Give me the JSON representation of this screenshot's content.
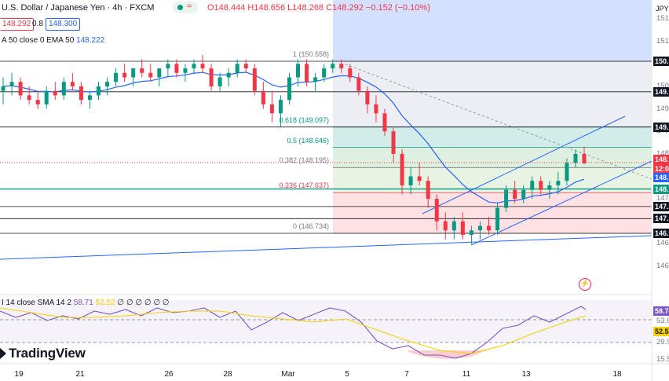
{
  "header": {
    "symbol_title": "U.S. Dollar / Japanese Yen · 4h · FXCM",
    "open": "O148.444",
    "high": "H148.656",
    "low": "L148.268",
    "close": "C148.292",
    "change": "−0.152 (−0.10%)",
    "sell_price": "148.292",
    "spread": "0.8",
    "buy_price": "148.300",
    "ma_label": "A 50 close 0 EMA 50",
    "ma_value": "148.222",
    "currency": "JPY"
  },
  "fib_levels": [
    {
      "label": "1 (150.558)",
      "value": 150.558,
      "color": "#787b86"
    },
    {
      "label": "0.618 (149.097)",
      "value": 149.097,
      "color": "#089981"
    },
    {
      "label": "0.5 (148.646)",
      "value": 148.646,
      "color": "#089981"
    },
    {
      "label": "0.382 (148.195)",
      "value": 148.195,
      "color": "#787b86"
    },
    {
      "label": "0.236 (147.637)",
      "value": 147.637,
      "color": "#f23645"
    },
    {
      "label": "0 (146.734)",
      "value": 146.734,
      "color": "#787b86"
    }
  ],
  "price_axis": {
    "ticks": [
      "151.",
      "151.",
      "150.",
      "150.",
      "149.",
      "149.",
      "148.",
      "148.",
      "147.",
      "147.",
      "146.",
      "146.",
      "145."
    ],
    "tick_values": [
      151.5,
      151.0,
      150.5,
      150.0,
      149.5,
      149.0,
      148.5,
      148.0,
      147.5,
      147.0,
      146.5,
      146.0,
      145.5
    ],
    "tags": [
      {
        "label": "150.",
        "value": 150.558,
        "color": "#131722"
      },
      {
        "label": "149.",
        "value": 149.88,
        "color": "#131722"
      },
      {
        "label": "149.",
        "value": 149.097,
        "color": "#131722"
      },
      {
        "label": "148.",
        "value": 148.38,
        "color": "#f23645"
      },
      {
        "label": "12:0",
        "value": 148.17,
        "color": "#f23645"
      },
      {
        "label": "148.",
        "value": 147.97,
        "color": "#2962ff"
      },
      {
        "label": "148.",
        "value": 147.72,
        "color": "#089981"
      },
      {
        "label": "147.",
        "value": 147.33,
        "color": "#131722"
      },
      {
        "label": "147.",
        "value": 147.06,
        "color": "#131722"
      },
      {
        "label": "146.",
        "value": 146.734,
        "color": "#131722"
      }
    ]
  },
  "rsi": {
    "label": "I 14 close SMA 14 2",
    "value": "58.71",
    "sma_value": "52.52",
    "nulls": "∅ ∅ ∅ ∅ ∅ ∅",
    "axis_ticks": [
      "53.6",
      "29.9",
      "15.5"
    ],
    "tags": [
      {
        "label": "58.7",
        "color": "#7e57c2"
      },
      {
        "label": "52.5",
        "color": "#f7d100"
      }
    ]
  },
  "time_axis": {
    "labels": [
      "19",
      "21",
      "26",
      "28",
      "Mar",
      "5",
      "7",
      "11",
      "13",
      "18"
    ]
  },
  "branding": {
    "name": "TradingView"
  },
  "chart_data": {
    "type": "candlestick",
    "interval": "4h",
    "ylim": [
      145.3,
      151.8
    ],
    "candles": [
      [
        149.9,
        150.2,
        149.6,
        150.0
      ],
      [
        150.0,
        150.3,
        149.8,
        150.1
      ],
      [
        150.1,
        150.2,
        149.7,
        149.8
      ],
      [
        149.8,
        150.0,
        149.6,
        149.7
      ],
      [
        149.7,
        149.9,
        149.5,
        149.6
      ],
      [
        149.6,
        150.0,
        149.5,
        149.9
      ],
      [
        149.9,
        150.1,
        149.7,
        149.8
      ],
      [
        149.8,
        150.2,
        149.7,
        150.1
      ],
      [
        150.1,
        150.3,
        149.9,
        150.0
      ],
      [
        150.0,
        150.1,
        149.6,
        149.7
      ],
      [
        149.7,
        149.9,
        149.5,
        149.8
      ],
      [
        149.8,
        150.1,
        149.7,
        150.0
      ],
      [
        150.0,
        150.2,
        149.8,
        150.1
      ],
      [
        150.1,
        150.4,
        150.0,
        150.3
      ],
      [
        150.3,
        150.5,
        150.1,
        150.2
      ],
      [
        150.2,
        150.4,
        150.0,
        150.4
      ],
      [
        150.4,
        150.6,
        150.2,
        150.3
      ],
      [
        150.3,
        150.5,
        150.1,
        150.2
      ],
      [
        150.2,
        150.4,
        150.0,
        150.4
      ],
      [
        150.4,
        150.6,
        150.2,
        150.5
      ],
      [
        150.5,
        150.6,
        150.2,
        150.3
      ],
      [
        150.3,
        150.5,
        150.1,
        150.4
      ],
      [
        150.4,
        150.6,
        150.3,
        150.5
      ],
      [
        150.5,
        150.7,
        150.3,
        150.4
      ],
      [
        150.4,
        150.5,
        149.9,
        150.0
      ],
      [
        150.0,
        150.3,
        149.9,
        150.2
      ],
      [
        150.2,
        150.4,
        150.0,
        150.3
      ],
      [
        150.3,
        150.6,
        150.2,
        150.5
      ],
      [
        150.5,
        150.6,
        150.3,
        150.4
      ],
      [
        150.4,
        150.5,
        149.8,
        149.9
      ],
      [
        149.9,
        150.1,
        149.5,
        149.6
      ],
      [
        149.6,
        149.9,
        149.2,
        149.4
      ],
      [
        149.4,
        149.8,
        149.1,
        149.7
      ],
      [
        149.7,
        150.3,
        149.6,
        150.2
      ],
      [
        150.2,
        150.6,
        150.0,
        150.5
      ],
      [
        150.5,
        150.6,
        150.0,
        150.1
      ],
      [
        150.1,
        150.3,
        149.9,
        150.2
      ],
      [
        150.2,
        150.5,
        150.1,
        150.4
      ],
      [
        150.4,
        150.6,
        150.3,
        150.5
      ],
      [
        150.5,
        150.6,
        150.3,
        150.4
      ],
      [
        150.4,
        150.5,
        150.1,
        150.2
      ],
      [
        150.2,
        150.3,
        149.8,
        149.9
      ],
      [
        149.9,
        150.0,
        149.4,
        149.6
      ],
      [
        149.6,
        149.8,
        149.2,
        149.4
      ],
      [
        149.4,
        149.5,
        148.9,
        149.0
      ],
      [
        149.0,
        149.1,
        148.3,
        148.5
      ],
      [
        148.5,
        148.6,
        147.6,
        147.8
      ],
      [
        147.8,
        148.2,
        147.6,
        148.0
      ],
      [
        148.0,
        148.3,
        147.8,
        147.9
      ],
      [
        147.9,
        148.0,
        147.3,
        147.5
      ],
      [
        147.5,
        147.6,
        146.8,
        147.0
      ],
      [
        147.0,
        147.2,
        146.6,
        146.8
      ],
      [
        146.8,
        147.1,
        146.6,
        147.0
      ],
      [
        147.0,
        147.2,
        146.6,
        146.7
      ],
      [
        146.7,
        146.9,
        146.5,
        146.8
      ],
      [
        146.8,
        147.0,
        146.6,
        146.9
      ],
      [
        146.9,
        147.1,
        146.7,
        146.8
      ],
      [
        146.8,
        147.4,
        146.7,
        147.3
      ],
      [
        147.3,
        147.8,
        147.2,
        147.7
      ],
      [
        147.7,
        147.9,
        147.4,
        147.5
      ],
      [
        147.5,
        147.8,
        147.4,
        147.7
      ],
      [
        147.7,
        148.0,
        147.5,
        147.9
      ],
      [
        147.9,
        148.0,
        147.6,
        147.7
      ],
      [
        147.7,
        147.9,
        147.5,
        147.8
      ],
      [
        147.8,
        148.1,
        147.6,
        147.9
      ],
      [
        147.9,
        148.4,
        147.8,
        148.3
      ],
      [
        148.3,
        148.6,
        148.2,
        148.5
      ],
      [
        148.5,
        148.66,
        148.27,
        148.29
      ]
    ],
    "series": [
      {
        "name": "EMA 50",
        "color": "#2962ff"
      },
      {
        "name": "RSI 14",
        "color": "#7e57c2"
      },
      {
        "name": "SMA 14",
        "color": "#f7d100"
      }
    ]
  }
}
